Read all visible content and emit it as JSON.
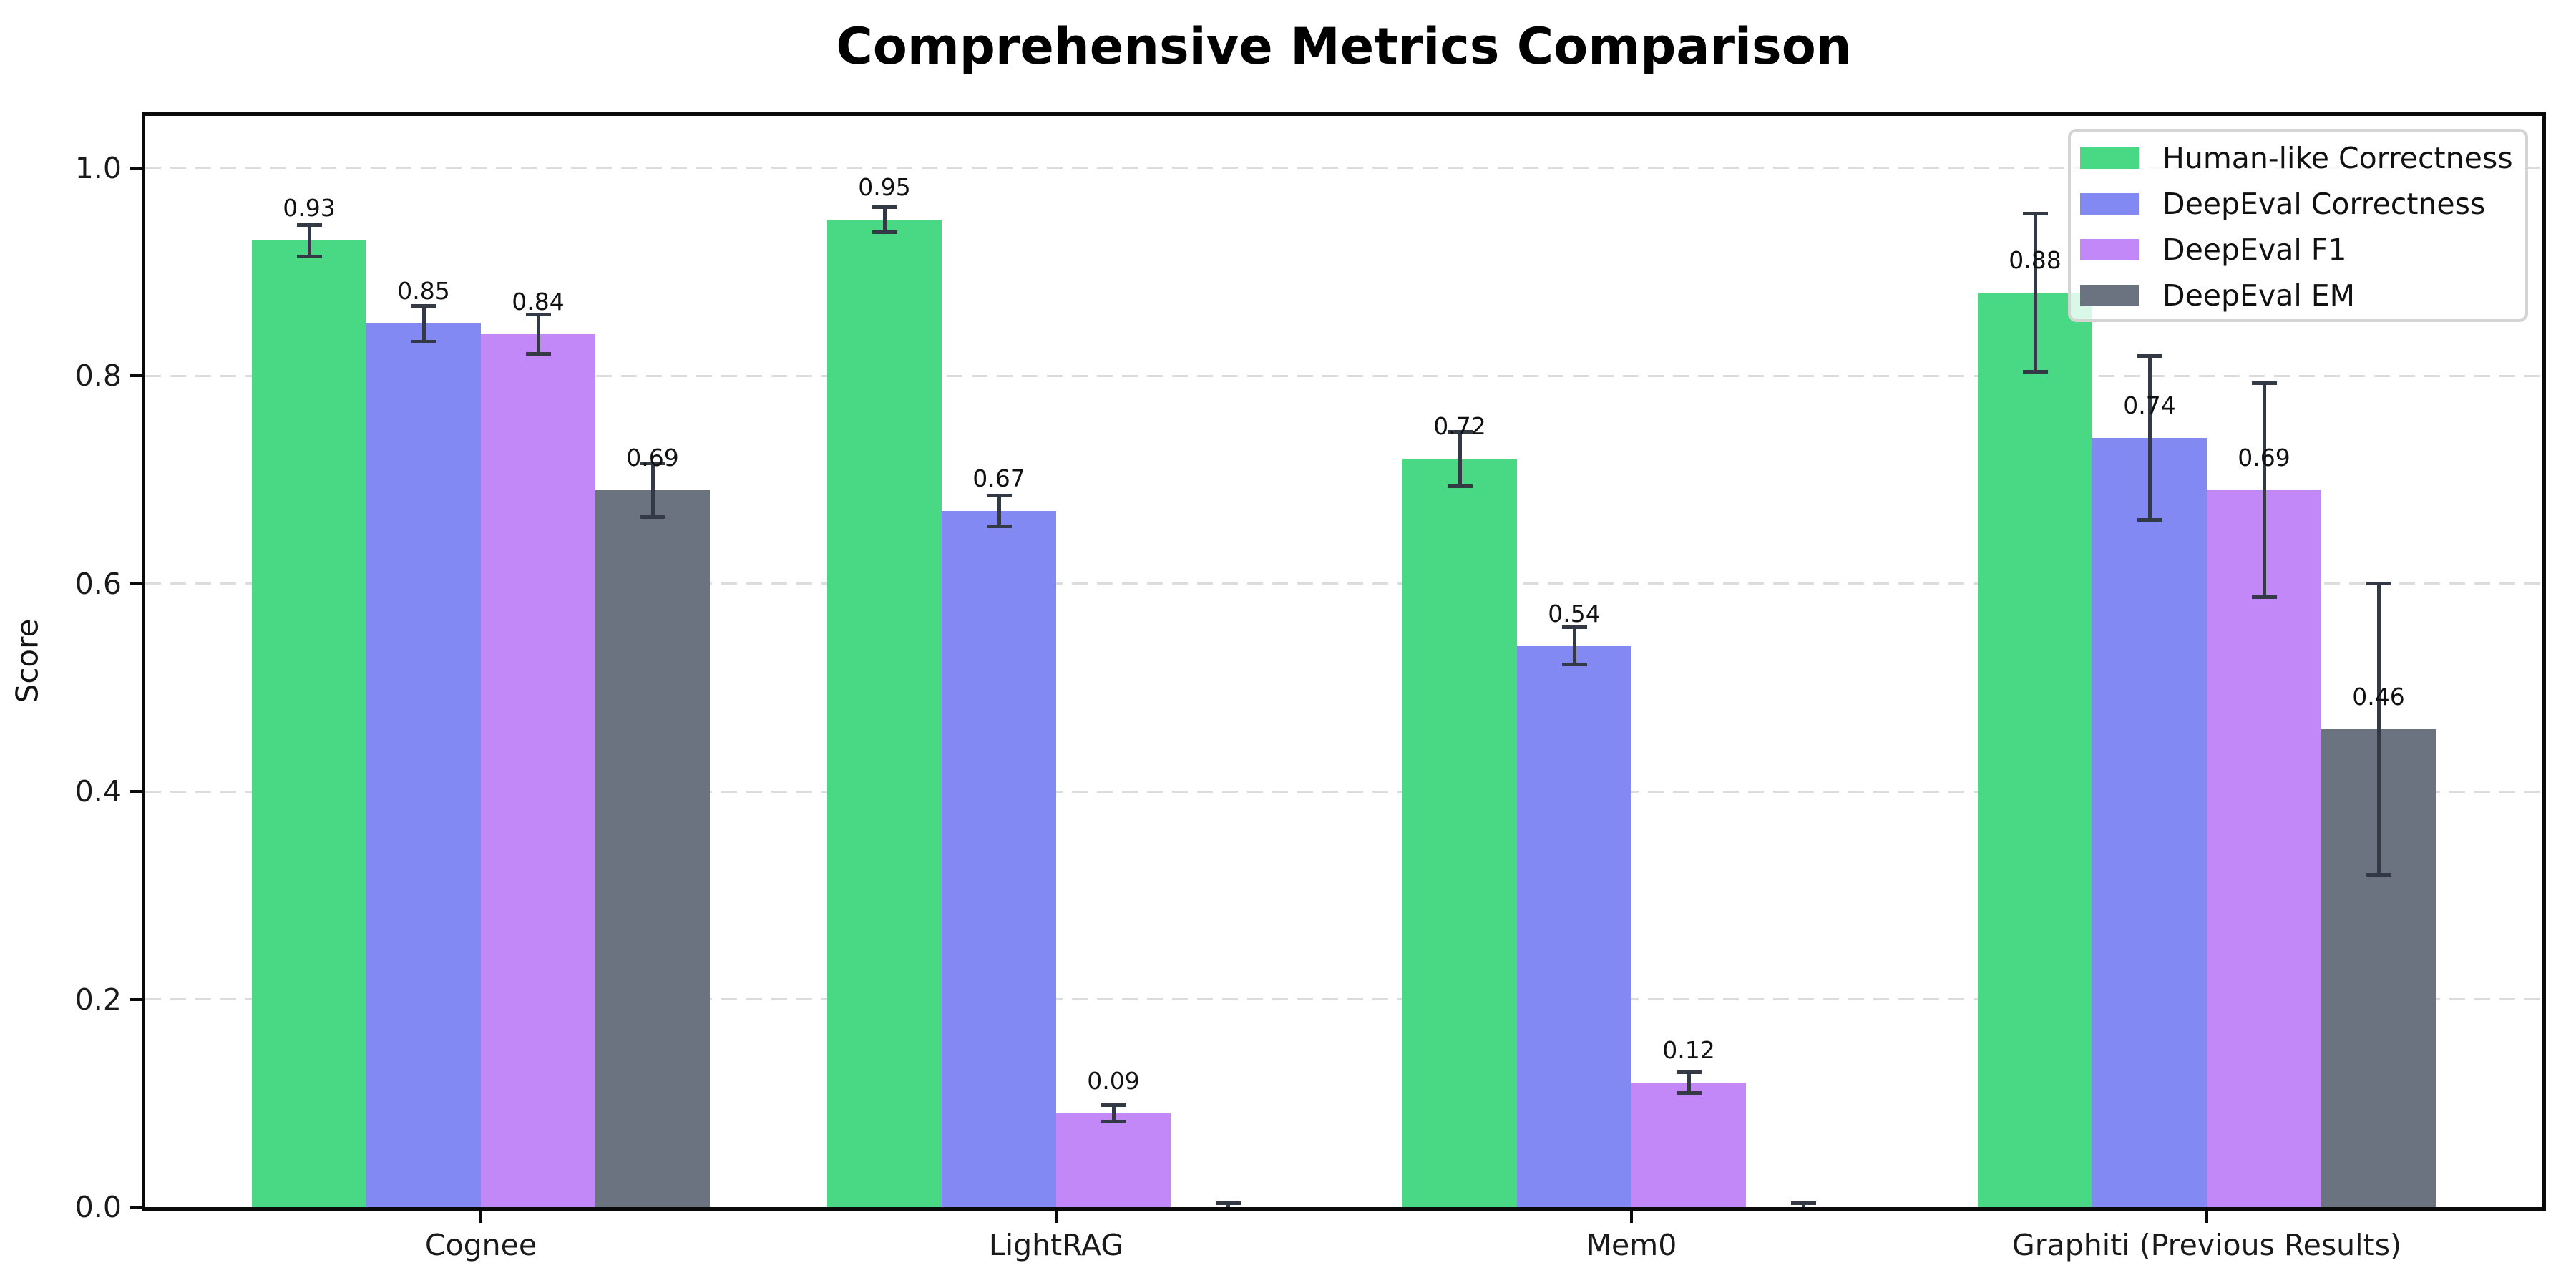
{
  "title": "Comprehensive Metrics Comparison",
  "ylabel": "Score",
  "chart_data": {
    "type": "bar",
    "title": "Comprehensive Metrics Comparison",
    "xlabel": "",
    "ylabel": "Score",
    "categories": [
      "Cognee",
      "LightRAG",
      "Mem0",
      "Graphiti (Previous Results)"
    ],
    "series": [
      {
        "name": "Human-like Correctness",
        "color": "#49d985",
        "values": [
          0.93,
          0.95,
          0.72,
          0.88
        ],
        "errors": [
          0.015,
          0.012,
          0.026,
          0.076
        ],
        "labels": [
          "0.93",
          "0.95",
          "0.72",
          "0.88"
        ]
      },
      {
        "name": "DeepEval Correctness",
        "color": "#8289f2",
        "values": [
          0.85,
          0.67,
          0.54,
          0.74
        ],
        "errors": [
          0.017,
          0.015,
          0.018,
          0.079
        ],
        "labels": [
          "0.85",
          "0.67",
          "0.54",
          "0.74"
        ]
      },
      {
        "name": "DeepEval F1",
        "color": "#c388f7",
        "values": [
          0.84,
          0.09,
          0.12,
          0.69
        ],
        "errors": [
          0.019,
          0.008,
          0.01,
          0.103
        ],
        "labels": [
          "0.84",
          "0.09",
          "0.12",
          "0.69"
        ]
      },
      {
        "name": "DeepEval EM",
        "color": "#6b7380",
        "values": [
          0.69,
          0.0,
          0.0,
          0.46
        ],
        "errors": [
          0.026,
          0.004,
          0.004,
          0.14
        ],
        "labels": [
          "0.69",
          "",
          "",
          "0.46"
        ]
      }
    ],
    "ylim": [
      0,
      1.05
    ],
    "yticks": [
      0.0,
      0.2,
      0.4,
      0.6,
      0.8,
      1.0
    ],
    "ytick_labels": [
      "0.0",
      "0.2",
      "0.4",
      "0.6",
      "0.8",
      "1.0"
    ],
    "grid": "horizontal dashed",
    "legend_position": "upper right",
    "error_bar_color": "#333a45"
  }
}
